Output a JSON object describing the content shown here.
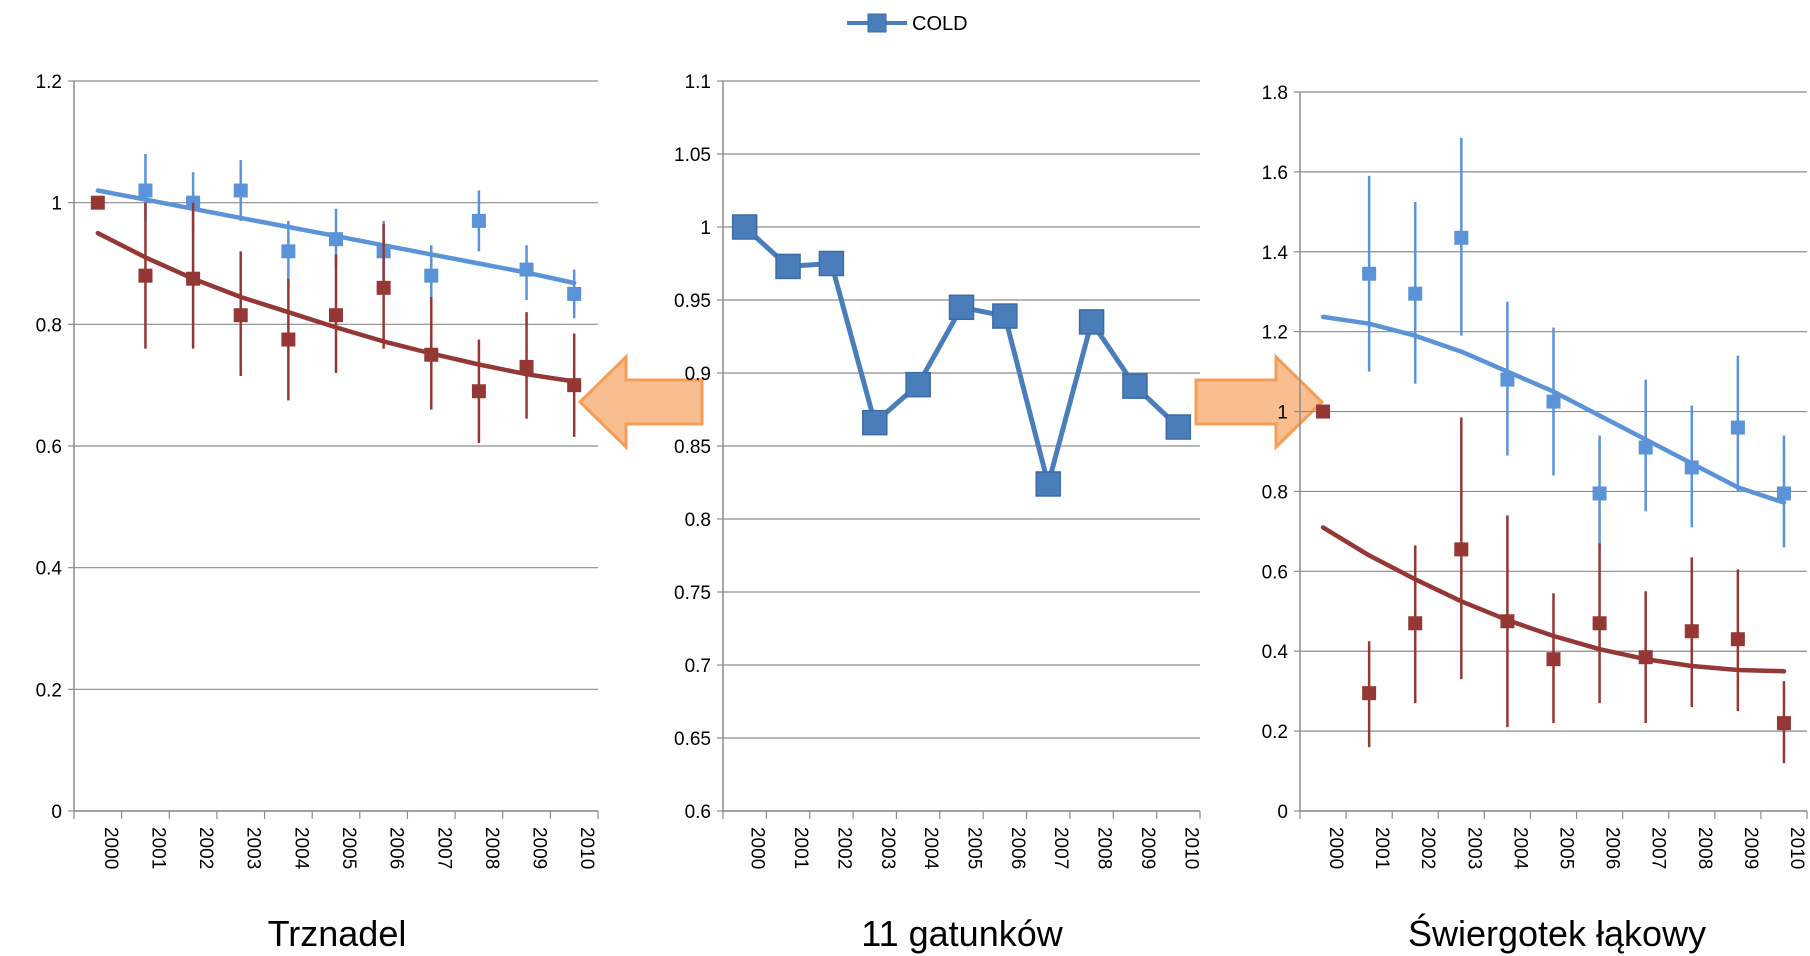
{
  "legend": {
    "label": "COLD"
  },
  "colors": {
    "cold": "#4A7EBB",
    "cold_marker": "#5B93D8",
    "red": "#953735",
    "arrow_fill": "#F9BE8F",
    "arrow_stroke": "#F59D56"
  },
  "chart_data": [
    {
      "type": "scatter",
      "title": "Trznadel",
      "xlabel": "",
      "ylabel": "",
      "categories": [
        "2000",
        "2001",
        "2002",
        "2003",
        "2004",
        "2005",
        "2006",
        "2007",
        "2008",
        "2009",
        "2010"
      ],
      "ylim": [
        0,
        1.2
      ],
      "yticks": [
        "0",
        "0.2",
        "0.4",
        "0.6",
        "0.8",
        "1",
        "1.2"
      ],
      "grid": true,
      "series": [
        {
          "color": "#5B93D8",
          "values": [
            null,
            1.02,
            1.0,
            1.02,
            0.92,
            0.94,
            0.92,
            0.88,
            0.97,
            0.89,
            0.85
          ],
          "err_low": [
            null,
            0.97,
            0.95,
            0.97,
            0.87,
            0.89,
            0.87,
            0.84,
            0.92,
            0.84,
            0.81
          ],
          "err_high": [
            null,
            1.08,
            1.05,
            1.07,
            0.97,
            0.99,
            0.97,
            0.93,
            1.02,
            0.93,
            0.89
          ],
          "trend": [
            1.02,
            1.005,
            0.99,
            0.975,
            0.96,
            0.945,
            0.93,
            0.915,
            0.9,
            0.885,
            0.868
          ]
        },
        {
          "color": "#953735",
          "values": [
            1.0,
            0.88,
            0.875,
            0.815,
            0.775,
            0.815,
            0.86,
            0.75,
            0.69,
            0.73,
            0.7
          ],
          "err_low": [
            null,
            0.76,
            0.76,
            0.715,
            0.675,
            0.72,
            0.76,
            0.66,
            0.605,
            0.645,
            0.615
          ],
          "err_high": [
            null,
            1.0,
            1.0,
            0.92,
            0.875,
            0.915,
            0.965,
            0.845,
            0.775,
            0.82,
            0.785
          ],
          "trend": [
            0.95,
            0.91,
            0.875,
            0.845,
            0.82,
            0.795,
            0.772,
            0.752,
            0.734,
            0.718,
            0.706
          ]
        }
      ]
    },
    {
      "type": "line",
      "title": "11 gatunków",
      "xlabel": "",
      "ylabel": "",
      "categories": [
        "2000",
        "2001",
        "2002",
        "2003",
        "2004",
        "2005",
        "2006",
        "2007",
        "2008",
        "2009",
        "2010"
      ],
      "ylim": [
        0.6,
        1.1
      ],
      "yticks": [
        "0.6",
        "0.65",
        "0.7",
        "0.75",
        "0.8",
        "0.85",
        "0.9",
        "0.95",
        "1",
        "1.05",
        "1.1"
      ],
      "grid": true,
      "series": [
        {
          "name": "COLD",
          "color": "#4A7EBB",
          "values": [
            1.0,
            0.973,
            0.975,
            0.866,
            0.892,
            0.945,
            0.939,
            0.824,
            0.935,
            0.891,
            0.863
          ]
        }
      ]
    },
    {
      "type": "scatter",
      "title": "Świergotek łąkowy",
      "xlabel": "",
      "ylabel": "",
      "categories": [
        "2000",
        "2001",
        "2002",
        "2003",
        "2004",
        "2005",
        "2006",
        "2007",
        "2008",
        "2009",
        "2010"
      ],
      "ylim": [
        0,
        1.8
      ],
      "yticks": [
        "0",
        "0.2",
        "0.4",
        "0.6",
        "0.8",
        "1",
        "1.2",
        "1.4",
        "1.6",
        "1.8"
      ],
      "grid": true,
      "series": [
        {
          "color": "#5B93D8",
          "values": [
            null,
            1.345,
            1.295,
            1.435,
            1.08,
            1.025,
            0.795,
            0.91,
            0.86,
            0.96,
            0.795
          ],
          "err_low": [
            null,
            1.1,
            1.07,
            1.19,
            0.89,
            0.84,
            0.66,
            0.75,
            0.71,
            0.8,
            0.66
          ],
          "err_high": [
            null,
            1.59,
            1.525,
            1.685,
            1.275,
            1.21,
            0.94,
            1.08,
            1.015,
            1.14,
            0.94
          ],
          "trend": [
            1.237,
            1.22,
            1.19,
            1.15,
            1.1,
            1.05,
            0.99,
            0.93,
            0.87,
            0.81,
            0.772
          ]
        },
        {
          "color": "#953735",
          "values": [
            1.0,
            0.295,
            0.47,
            0.655,
            0.475,
            0.38,
            0.47,
            0.385,
            0.45,
            0.43,
            0.22
          ],
          "err_low": [
            null,
            0.16,
            0.27,
            0.33,
            0.21,
            0.22,
            0.27,
            0.22,
            0.26,
            0.25,
            0.12
          ],
          "err_high": [
            null,
            0.425,
            0.665,
            0.985,
            0.74,
            0.545,
            0.67,
            0.55,
            0.635,
            0.605,
            0.325
          ],
          "trend": [
            0.71,
            0.64,
            0.58,
            0.525,
            0.478,
            0.438,
            0.405,
            0.38,
            0.363,
            0.353,
            0.35
          ]
        }
      ]
    }
  ]
}
